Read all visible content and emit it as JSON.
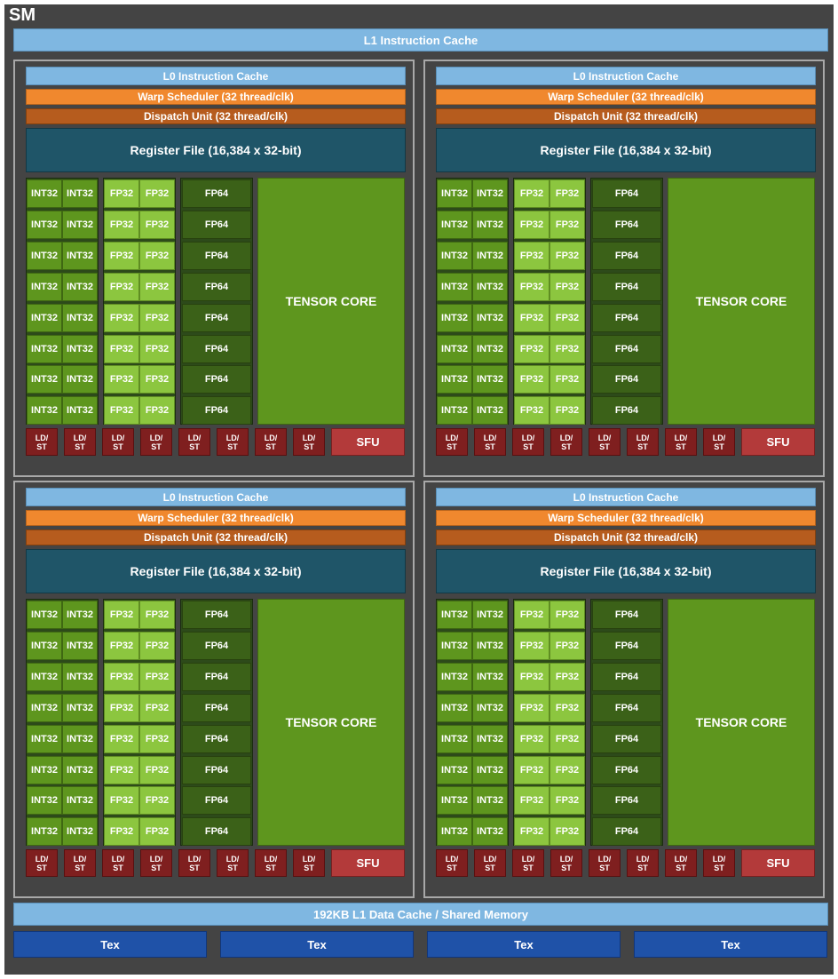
{
  "sm": {
    "title": "SM",
    "l1_instruction_cache": "L1 Instruction Cache",
    "l1_data_cache": "192KB L1 Data Cache / Shared Memory",
    "tex_units": [
      "Tex",
      "Tex",
      "Tex",
      "Tex"
    ]
  },
  "partition": {
    "l0_cache": "L0 Instruction Cache",
    "warp_scheduler": "Warp Scheduler (32 thread/clk)",
    "dispatch_unit": "Dispatch Unit (32 thread/clk)",
    "register_file": "Register File (16,384 x 32-bit)",
    "int32_label": "INT32",
    "fp32_label": "FP32",
    "fp64_label": "FP64",
    "tensor_core": "TENSOR CORE",
    "ldst_label": "LD/\nST",
    "sfu_label": "SFU",
    "rows": 8,
    "ldst_units": 8
  },
  "partitions": [
    "p0",
    "p1",
    "p2",
    "p3"
  ],
  "colors": {
    "background": "#444444",
    "cache": "#7fb7e1",
    "warp_scheduler": "#f0882e",
    "dispatch_unit": "#b65c1e",
    "register_file": "#1f5568",
    "int32": "#5e961e",
    "fp32": "#8cc63f",
    "fp64": "#3b6118",
    "tensor_core": "#5e961e",
    "ldst": "#7f1f1f",
    "sfu": "#b33a3a",
    "tex": "#1f52a8"
  }
}
